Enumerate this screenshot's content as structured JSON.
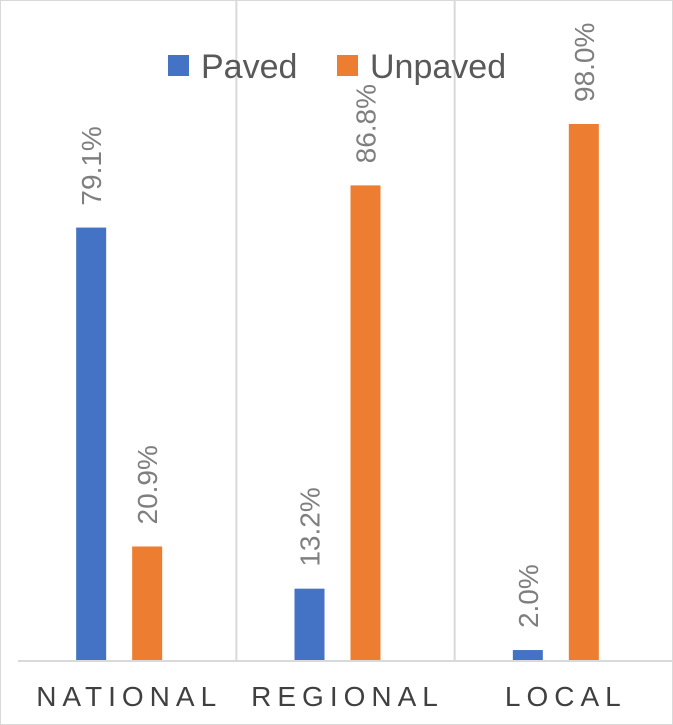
{
  "chart_data": {
    "type": "bar",
    "title": "",
    "xlabel": "",
    "ylabel": "",
    "categories": [
      "NATIONAL",
      "REGIONAL",
      "LOCAL"
    ],
    "series": [
      {
        "name": "Paved",
        "color": "#4472c4",
        "values": [
          79.1,
          13.2,
          2.0
        ],
        "labels": [
          "79.1%",
          "13.2%",
          "2.0%"
        ]
      },
      {
        "name": "Unpaved",
        "color": "#ed7d31",
        "values": [
          20.9,
          86.8,
          98.0
        ],
        "labels": [
          "20.9%",
          "86.8%",
          "98.0%"
        ]
      }
    ],
    "ylim": [
      0,
      100
    ],
    "grid": false,
    "category_dividers": true,
    "legend_position": "top",
    "data_label_orientation": "vertical"
  }
}
